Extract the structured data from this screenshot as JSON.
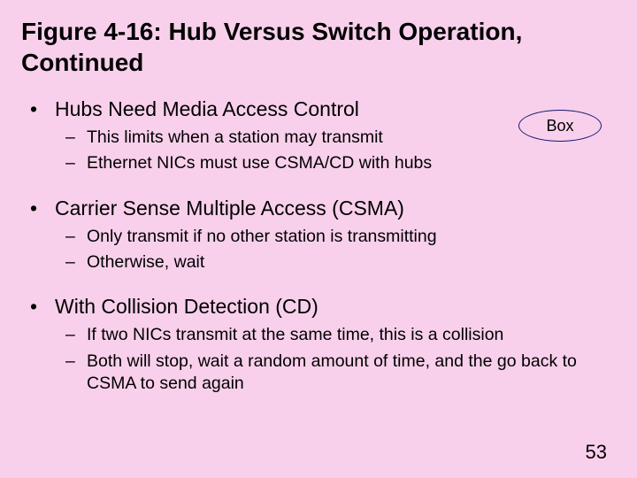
{
  "title": "Figure 4-16: Hub Versus Switch Operation, Continued",
  "box_label": "Box",
  "page_number": "53",
  "b1": {
    "heading": "Hubs Need Media Access Control",
    "sub1": "This limits when a station may transmit",
    "sub2": "Ethernet NICs must use CSMA/CD with hubs"
  },
  "b2": {
    "heading": "Carrier Sense Multiple Access (CSMA)",
    "sub1": "Only transmit if no other station is transmitting",
    "sub2": "Otherwise, wait"
  },
  "b3": {
    "heading": "With Collision Detection (CD)",
    "sub1": "If two NICs transmit at the same time, this is a collision",
    "sub2": "Both will stop, wait a random amount of time, and the go back to CSMA to send again"
  }
}
